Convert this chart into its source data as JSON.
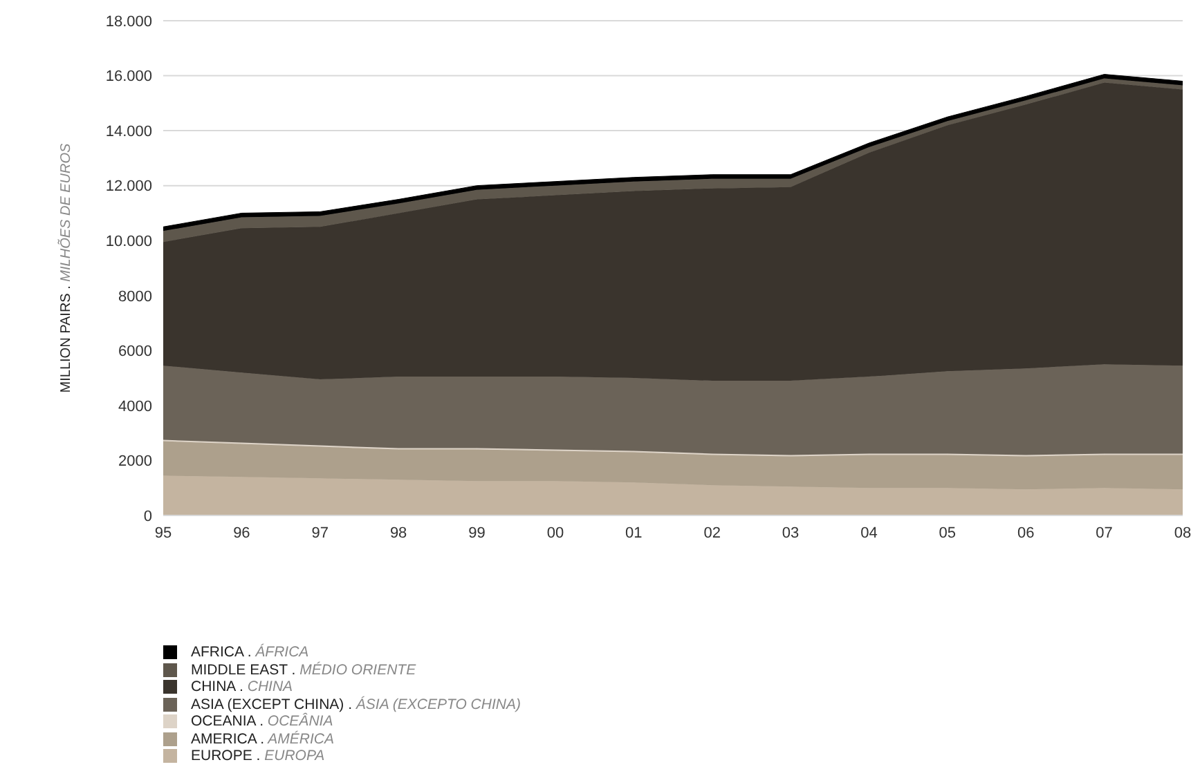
{
  "chart_data": {
    "type": "area",
    "stacked": true,
    "ylabel": "MILLION PAIRS . MILHÕES DE EUROS",
    "categories": [
      "95",
      "96",
      "97",
      "98",
      "99",
      "00",
      "01",
      "02",
      "03",
      "04",
      "05",
      "06",
      "07",
      "08"
    ],
    "series": [
      {
        "name": "EUROPE . EUROPA",
        "color": "#c4b4a0",
        "values": [
          1450,
          1400,
          1350,
          1300,
          1250,
          1250,
          1200,
          1100,
          1050,
          1000,
          1000,
          950,
          1000,
          950
        ]
      },
      {
        "name": "AMERICA . AMÉRICA",
        "color": "#ada08c",
        "values": [
          1250,
          1200,
          1150,
          1100,
          1150,
          1100,
          1100,
          1100,
          1100,
          1200,
          1200,
          1200,
          1200,
          1250
        ]
      },
      {
        "name": "OCEANIA . OCEÂNIA",
        "color": "#ddd3c7",
        "values": [
          50,
          50,
          50,
          50,
          50,
          50,
          50,
          50,
          50,
          50,
          50,
          50,
          50,
          50
        ]
      },
      {
        "name": "ASIA (EXCEPT CHINA) . ÁSIA (EXCEPTO CHINA)",
        "color": "#6b6358",
        "values": [
          2700,
          2550,
          2400,
          2600,
          2600,
          2650,
          2650,
          2650,
          2700,
          2800,
          3000,
          3150,
          3250,
          3200
        ]
      },
      {
        "name": "CHINA . CHINA",
        "color": "#3a342d",
        "values": [
          4500,
          5250,
          5550,
          5950,
          6450,
          6600,
          6800,
          7000,
          7050,
          8150,
          8950,
          9600,
          10250,
          10050
        ]
      },
      {
        "name": "MIDDLE EAST . MÉDIO ORIENTE",
        "color": "#5e574c",
        "values": [
          400,
          400,
          400,
          350,
          350,
          350,
          350,
          350,
          300,
          200,
          150,
          150,
          150,
          150
        ]
      },
      {
        "name": "AFRICA . ÁFRICA",
        "color": "#000000",
        "values": [
          150,
          150,
          150,
          150,
          150,
          150,
          150,
          150,
          150,
          150,
          150,
          150,
          150,
          150
        ]
      }
    ],
    "ylim": [
      0,
      18000
    ],
    "yticks": [
      0,
      2000,
      4000,
      6000,
      8000,
      {
        "value": 10000,
        "label": "10.000"
      },
      {
        "value": 12000,
        "label": "12.000"
      },
      {
        "value": 14000,
        "label": "14.000"
      },
      {
        "value": 16000,
        "label": "16.000"
      },
      {
        "value": 18000,
        "label": "18.000"
      }
    ],
    "grid": "y",
    "legend": "bottom"
  }
}
